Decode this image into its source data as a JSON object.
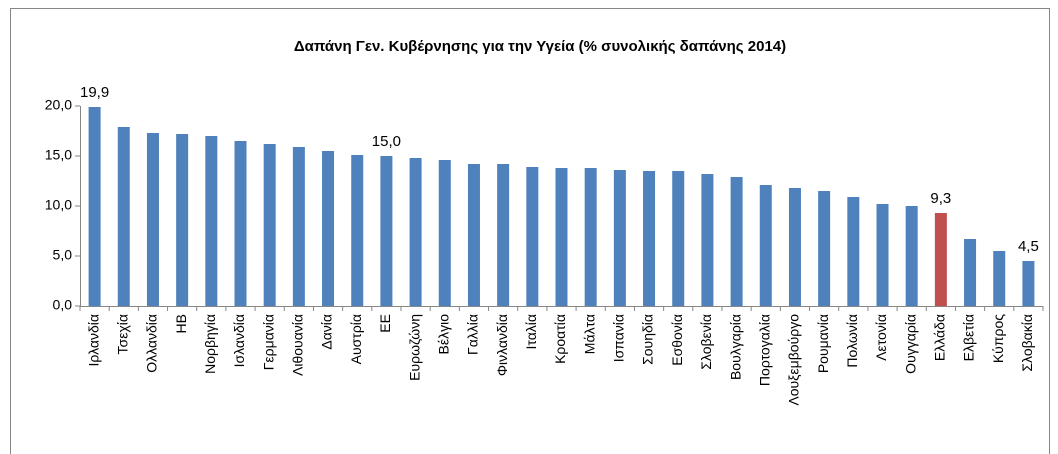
{
  "chart_data": {
    "type": "bar",
    "title": "Δαπάνη Γεν. Κυβέρνησης για την Υγεία (% συνολικής δαπάνης 2014)",
    "categories": [
      "Ιρλανδία",
      "Τσεχία",
      "Ολλανδία",
      "ΗΒ",
      "Νορβηγία",
      "Ισλανδία",
      "Γερμανία",
      "Λιθουανία",
      "Δανία",
      "Αυστρία",
      "ΕΕ",
      "Ευρωζώνη",
      "Βέλγιο",
      "Γαλλία",
      "Φινλανδία",
      "Ιταλία",
      "Κροατία",
      "Μάλτα",
      "Ισπανία",
      "Σουηδία",
      "Εσθονία",
      "Σλοβενία",
      "Βουλγαρία",
      "Πορτογαλία",
      "Λουξεμβούργο",
      "Ρουμανία",
      "Πολωνία",
      "Λετονία",
      "Ουγγαρία",
      "Ελλάδα",
      "Ελβετία",
      "Κύπρος",
      "Σλοβακία"
    ],
    "values": [
      19.9,
      17.9,
      17.3,
      17.2,
      17.0,
      16.5,
      16.2,
      15.9,
      15.5,
      15.1,
      15.0,
      14.8,
      14.6,
      14.2,
      14.2,
      13.9,
      13.8,
      13.8,
      13.6,
      13.5,
      13.5,
      13.2,
      12.9,
      12.1,
      11.8,
      11.5,
      10.9,
      10.2,
      10.0,
      9.3,
      6.7,
      5.5,
      4.5
    ],
    "value_labels": [
      "19,9",
      null,
      null,
      null,
      null,
      null,
      null,
      null,
      null,
      null,
      "15,0",
      null,
      null,
      null,
      null,
      null,
      null,
      null,
      null,
      null,
      null,
      null,
      null,
      null,
      null,
      null,
      null,
      null,
      null,
      "9,3",
      null,
      null,
      "4,5"
    ],
    "colors": [
      "#4f81bd",
      "#4f81bd",
      "#4f81bd",
      "#4f81bd",
      "#4f81bd",
      "#4f81bd",
      "#4f81bd",
      "#4f81bd",
      "#4f81bd",
      "#4f81bd",
      "#4f81bd",
      "#4f81bd",
      "#4f81bd",
      "#4f81bd",
      "#4f81bd",
      "#4f81bd",
      "#4f81bd",
      "#4f81bd",
      "#4f81bd",
      "#4f81bd",
      "#4f81bd",
      "#4f81bd",
      "#4f81bd",
      "#4f81bd",
      "#4f81bd",
      "#4f81bd",
      "#4f81bd",
      "#4f81bd",
      "#4f81bd",
      "#c0504d",
      "#4f81bd",
      "#4f81bd",
      "#4f81bd"
    ],
    "ylim": [
      0,
      20
    ],
    "yticks": [
      {
        "value": 0,
        "label": "0,0"
      },
      {
        "value": 5,
        "label": "5,0"
      },
      {
        "value": 10,
        "label": "10,0"
      },
      {
        "value": 15,
        "label": "15,0"
      },
      {
        "value": 20,
        "label": "20,0"
      }
    ],
    "grid": false
  }
}
